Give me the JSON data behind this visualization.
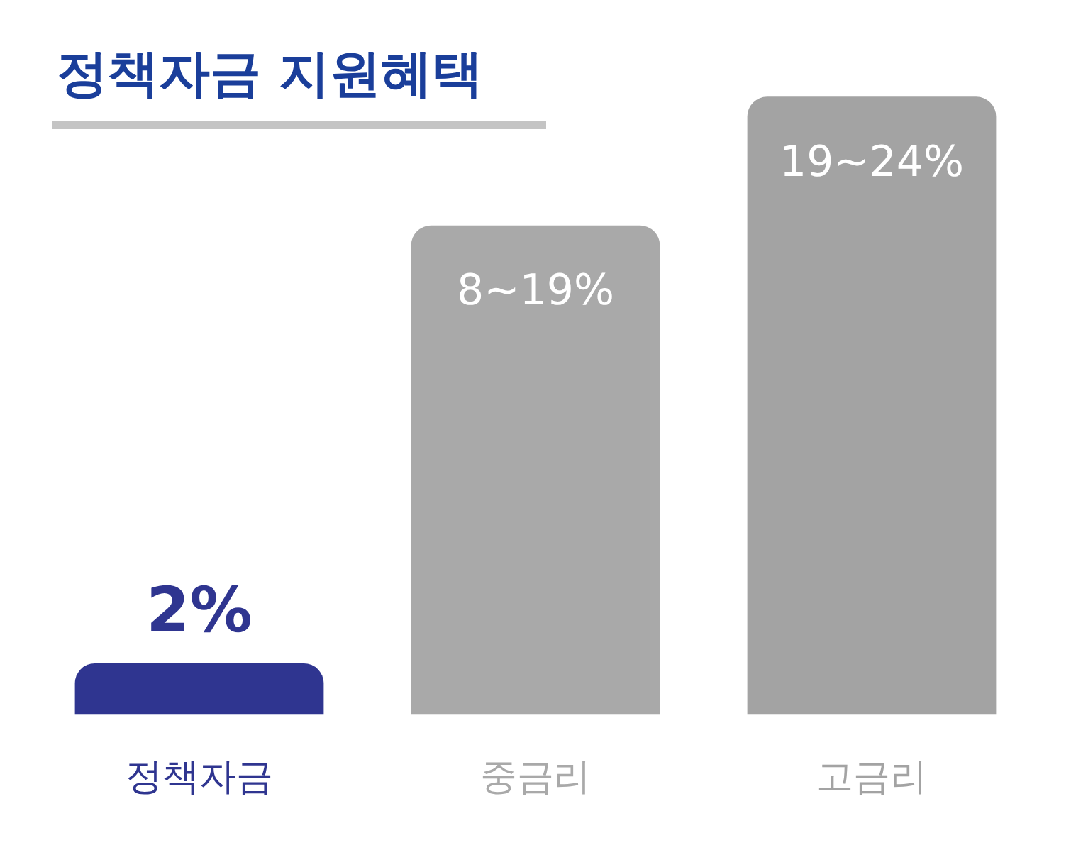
{
  "chart_data": {
    "type": "bar",
    "title": "정책자금 지원혜택",
    "categories": [
      "정책자금",
      "중금리",
      "고금리"
    ],
    "values": [
      2,
      19,
      24
    ],
    "colors": [
      "#2f3590",
      "#a9a9a9",
      "#a3a3a3"
    ],
    "value_labels": [
      "2%",
      "8~19%",
      "19~24%"
    ],
    "legend": false
  }
}
